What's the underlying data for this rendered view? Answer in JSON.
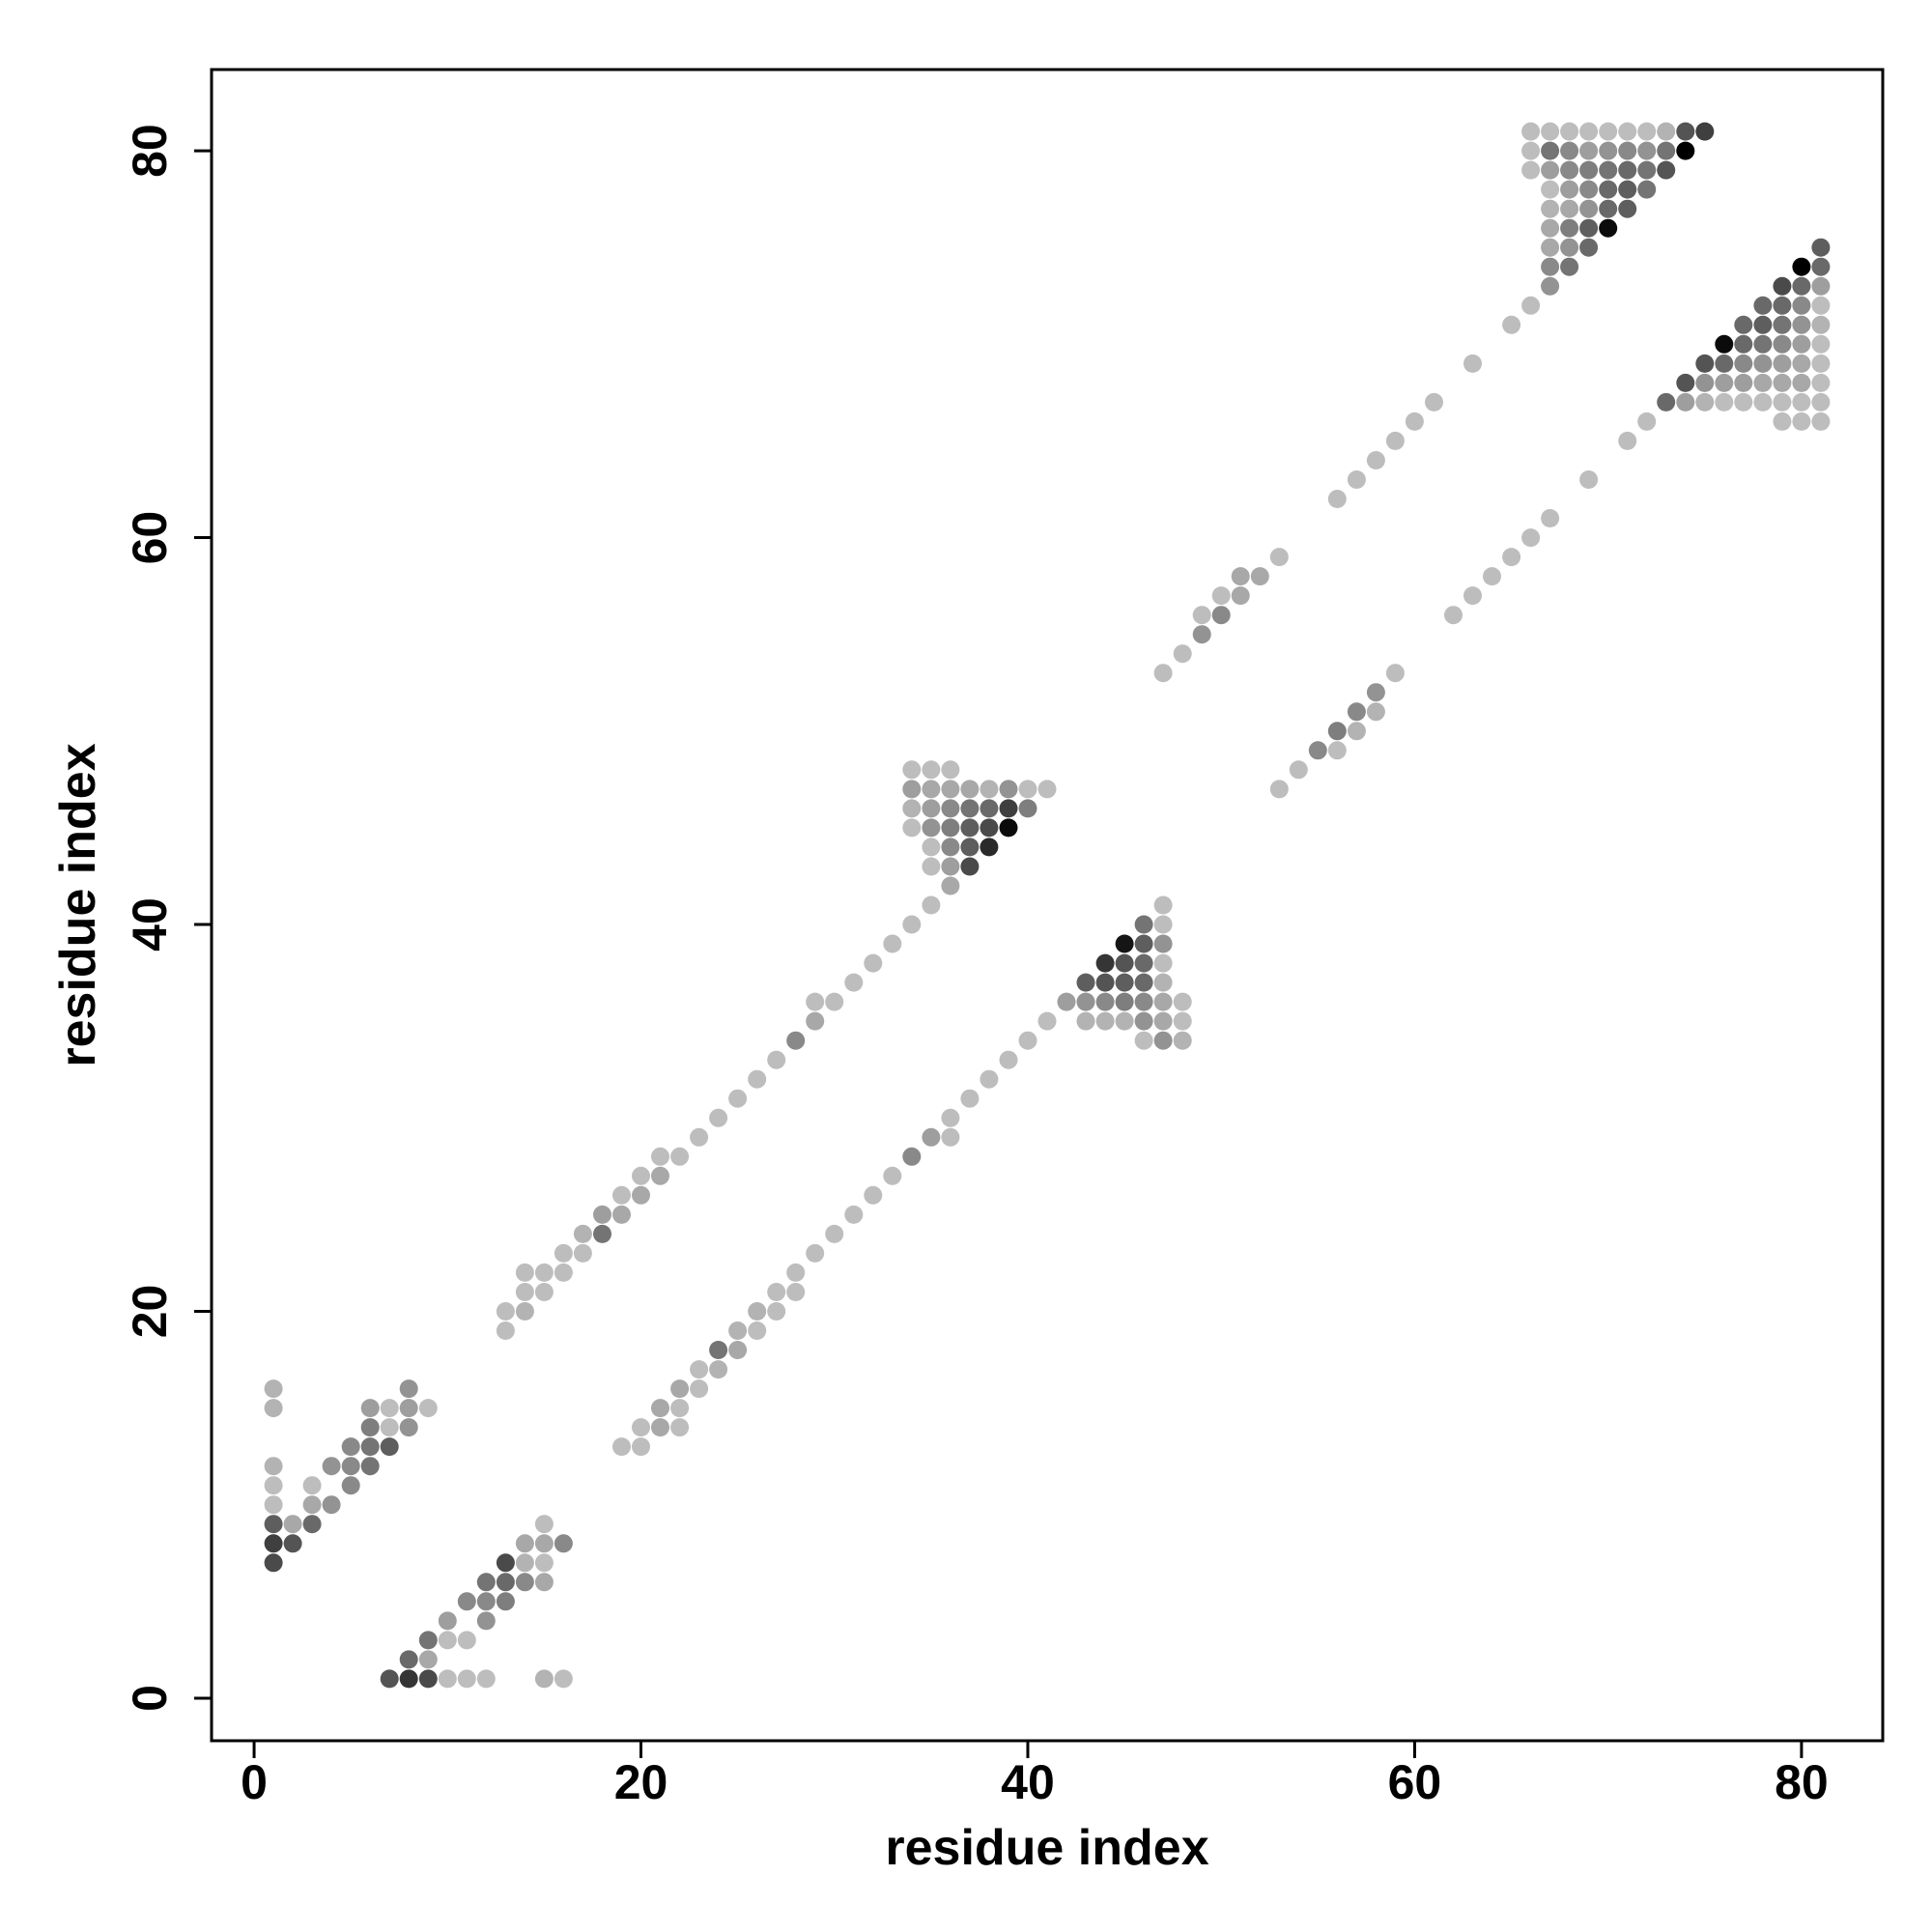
{
  "chart_data": {
    "type": "scatter",
    "title": "",
    "xlabel": "residue index",
    "ylabel": "residue index",
    "xlim": [
      -2.2,
      84.2
    ],
    "ylim": [
      -2.2,
      84.2
    ],
    "xticks": [
      0,
      20,
      40,
      60,
      80
    ],
    "yticks": [
      0,
      20,
      40,
      60,
      80
    ],
    "grid": false,
    "legend": "none",
    "color_scale": {
      "low": "#d2d2d2",
      "high": "#000000",
      "value_range": [
        0,
        1
      ]
    },
    "points": [
      [
        7,
        1,
        0.6
      ],
      [
        8,
        1,
        0.75
      ],
      [
        9,
        1,
        0.65
      ],
      [
        10,
        1,
        0.1
      ],
      [
        11,
        1,
        0.1
      ],
      [
        12,
        1,
        0.1
      ],
      [
        15,
        1,
        0.15
      ],
      [
        16,
        1,
        0.1
      ],
      [
        8,
        2,
        0.5
      ],
      [
        9,
        2,
        0.2
      ],
      [
        9,
        3,
        0.45
      ],
      [
        10,
        3,
        0.1
      ],
      [
        11,
        3,
        0.1
      ],
      [
        10,
        4,
        0.25
      ],
      [
        12,
        4,
        0.3
      ],
      [
        11,
        5,
        0.35
      ],
      [
        12,
        5,
        0.35
      ],
      [
        13,
        5,
        0.4
      ],
      [
        12,
        6,
        0.45
      ],
      [
        13,
        6,
        0.5
      ],
      [
        14,
        6,
        0.35
      ],
      [
        15,
        6,
        0.2
      ],
      [
        13,
        7,
        0.65
      ],
      [
        14,
        7,
        0.15
      ],
      [
        15,
        7,
        0.1
      ],
      [
        14,
        8,
        0.2
      ],
      [
        15,
        8,
        0.2
      ],
      [
        16,
        8,
        0.35
      ],
      [
        15,
        9,
        0.1
      ],
      [
        1,
        7,
        0.65
      ],
      [
        1,
        8,
        0.7
      ],
      [
        2,
        8,
        0.6
      ],
      [
        1,
        9,
        0.55
      ],
      [
        2,
        9,
        0.2
      ],
      [
        3,
        9,
        0.5
      ],
      [
        1,
        10,
        0.1
      ],
      [
        3,
        10,
        0.2
      ],
      [
        4,
        10,
        0.3
      ],
      [
        1,
        11,
        0.1
      ],
      [
        3,
        11,
        0.1
      ],
      [
        5,
        11,
        0.35
      ],
      [
        1,
        12,
        0.15
      ],
      [
        4,
        12,
        0.3
      ],
      [
        5,
        12,
        0.35
      ],
      [
        6,
        12,
        0.45
      ],
      [
        5,
        13,
        0.35
      ],
      [
        6,
        13,
        0.45
      ],
      [
        7,
        13,
        0.55
      ],
      [
        6,
        14,
        0.4
      ],
      [
        7,
        14,
        0.1
      ],
      [
        8,
        14,
        0.3
      ],
      [
        6,
        15,
        0.25
      ],
      [
        7,
        15,
        0.1
      ],
      [
        8,
        15,
        0.25
      ],
      [
        9,
        15,
        0.1
      ],
      [
        1,
        15,
        0.15
      ],
      [
        1,
        16,
        0.15
      ],
      [
        8,
        16,
        0.3
      ],
      [
        19,
        13,
        0.1
      ],
      [
        20,
        13,
        0.1
      ],
      [
        20,
        14,
        0.1
      ],
      [
        21,
        14,
        0.2
      ],
      [
        22,
        14,
        0.1
      ],
      [
        21,
        15,
        0.2
      ],
      [
        22,
        15,
        0.1
      ],
      [
        22,
        16,
        0.2
      ],
      [
        23,
        16,
        0.1
      ],
      [
        23,
        17,
        0.1
      ],
      [
        24,
        17,
        0.15
      ],
      [
        24,
        18,
        0.45
      ],
      [
        25,
        18,
        0.2
      ],
      [
        25,
        19,
        0.15
      ],
      [
        26,
        19,
        0.1
      ],
      [
        26,
        20,
        0.15
      ],
      [
        27,
        20,
        0.1
      ],
      [
        27,
        21,
        0.1
      ],
      [
        28,
        21,
        0.1
      ],
      [
        28,
        22,
        0.1
      ],
      [
        29,
        23,
        0.1
      ],
      [
        30,
        24,
        0.1
      ],
      [
        31,
        25,
        0.1
      ],
      [
        32,
        26,
        0.1
      ],
      [
        33,
        27,
        0.1
      ],
      [
        34,
        28,
        0.35
      ],
      [
        35,
        29,
        0.25
      ],
      [
        36,
        29,
        0.1
      ],
      [
        36,
        30,
        0.1
      ],
      [
        37,
        31,
        0.1
      ],
      [
        38,
        32,
        0.1
      ],
      [
        39,
        33,
        0.1
      ],
      [
        40,
        34,
        0.1
      ],
      [
        41,
        35,
        0.1
      ],
      [
        43,
        35,
        0.15
      ],
      [
        44,
        35,
        0.15
      ],
      [
        45,
        35,
        0.15
      ],
      [
        46,
        35,
        0.3
      ],
      [
        47,
        35,
        0.2
      ],
      [
        48,
        35,
        0.1
      ],
      [
        42,
        36,
        0.25
      ],
      [
        43,
        36,
        0.3
      ],
      [
        44,
        36,
        0.35
      ],
      [
        45,
        36,
        0.4
      ],
      [
        46,
        36,
        0.35
      ],
      [
        47,
        36,
        0.2
      ],
      [
        48,
        36,
        0.1
      ],
      [
        43,
        37,
        0.55
      ],
      [
        44,
        37,
        0.6
      ],
      [
        45,
        37,
        0.55
      ],
      [
        46,
        37,
        0.5
      ],
      [
        47,
        37,
        0.15
      ],
      [
        44,
        38,
        0.75
      ],
      [
        45,
        38,
        0.6
      ],
      [
        46,
        38,
        0.5
      ],
      [
        47,
        38,
        0.1
      ],
      [
        45,
        39,
        0.9
      ],
      [
        46,
        39,
        0.55
      ],
      [
        47,
        39,
        0.3
      ],
      [
        46,
        40,
        0.45
      ],
      [
        47,
        40,
        0.1
      ],
      [
        47,
        41,
        0.1
      ],
      [
        46,
        34,
        0.1
      ],
      [
        47,
        34,
        0.3
      ],
      [
        48,
        34,
        0.15
      ],
      [
        13,
        19,
        0.1
      ],
      [
        13,
        20,
        0.1
      ],
      [
        14,
        20,
        0.15
      ],
      [
        14,
        21,
        0.1
      ],
      [
        15,
        21,
        0.1
      ],
      [
        14,
        22,
        0.1
      ],
      [
        15,
        22,
        0.1
      ],
      [
        16,
        22,
        0.1
      ],
      [
        16,
        23,
        0.1
      ],
      [
        17,
        23,
        0.1
      ],
      [
        17,
        24,
        0.15
      ],
      [
        18,
        24,
        0.45
      ],
      [
        18,
        25,
        0.25
      ],
      [
        19,
        25,
        0.2
      ],
      [
        19,
        26,
        0.1
      ],
      [
        20,
        26,
        0.2
      ],
      [
        20,
        27,
        0.1
      ],
      [
        21,
        27,
        0.2
      ],
      [
        21,
        28,
        0.1
      ],
      [
        22,
        28,
        0.1
      ],
      [
        23,
        29,
        0.1
      ],
      [
        24,
        30,
        0.1
      ],
      [
        25,
        31,
        0.1
      ],
      [
        26,
        32,
        0.1
      ],
      [
        27,
        33,
        0.1
      ],
      [
        28,
        34,
        0.35
      ],
      [
        29,
        35,
        0.2
      ],
      [
        29,
        36,
        0.1
      ],
      [
        30,
        36,
        0.1
      ],
      [
        31,
        37,
        0.1
      ],
      [
        32,
        38,
        0.1
      ],
      [
        33,
        39,
        0.1
      ],
      [
        34,
        40,
        0.1
      ],
      [
        35,
        41,
        0.1
      ],
      [
        36,
        42,
        0.2
      ],
      [
        35,
        43,
        0.1
      ],
      [
        36,
        43,
        0.25
      ],
      [
        37,
        43,
        0.65
      ],
      [
        35,
        44,
        0.1
      ],
      [
        36,
        44,
        0.35
      ],
      [
        37,
        44,
        0.55
      ],
      [
        38,
        44,
        0.8
      ],
      [
        34,
        45,
        0.1
      ],
      [
        35,
        45,
        0.3
      ],
      [
        36,
        45,
        0.4
      ],
      [
        37,
        45,
        0.55
      ],
      [
        38,
        45,
        0.65
      ],
      [
        39,
        45,
        0.95
      ],
      [
        34,
        46,
        0.15
      ],
      [
        35,
        46,
        0.25
      ],
      [
        36,
        46,
        0.35
      ],
      [
        37,
        46,
        0.45
      ],
      [
        38,
        46,
        0.5
      ],
      [
        39,
        46,
        0.7
      ],
      [
        40,
        46,
        0.4
      ],
      [
        34,
        47,
        0.25
      ],
      [
        35,
        47,
        0.2
      ],
      [
        36,
        47,
        0.2
      ],
      [
        37,
        47,
        0.2
      ],
      [
        38,
        47,
        0.15
      ],
      [
        39,
        47,
        0.3
      ],
      [
        40,
        47,
        0.1
      ],
      [
        41,
        47,
        0.1
      ],
      [
        34,
        48,
        0.1
      ],
      [
        35,
        48,
        0.1
      ],
      [
        36,
        48,
        0.1
      ],
      [
        47,
        53,
        0.1
      ],
      [
        48,
        54,
        0.1
      ],
      [
        49,
        55,
        0.3
      ],
      [
        49,
        56,
        0.1
      ],
      [
        50,
        56,
        0.35
      ],
      [
        50,
        57,
        0.1
      ],
      [
        51,
        57,
        0.2
      ],
      [
        51,
        58,
        0.2
      ],
      [
        52,
        58,
        0.2
      ],
      [
        53,
        59,
        0.1
      ],
      [
        56,
        62,
        0.1
      ],
      [
        57,
        63,
        0.1
      ],
      [
        58,
        64,
        0.1
      ],
      [
        59,
        65,
        0.1
      ],
      [
        60,
        66,
        0.1
      ],
      [
        61,
        67,
        0.1
      ],
      [
        63,
        69,
        0.1
      ],
      [
        65,
        71,
        0.1
      ],
      [
        53,
        47,
        0.1
      ],
      [
        54,
        48,
        0.1
      ],
      [
        55,
        49,
        0.35
      ],
      [
        56,
        49,
        0.1
      ],
      [
        56,
        50,
        0.4
      ],
      [
        57,
        50,
        0.15
      ],
      [
        57,
        51,
        0.35
      ],
      [
        58,
        51,
        0.15
      ],
      [
        58,
        52,
        0.3
      ],
      [
        59,
        53,
        0.1
      ],
      [
        62,
        56,
        0.1
      ],
      [
        63,
        57,
        0.1
      ],
      [
        64,
        58,
        0.1
      ],
      [
        65,
        59,
        0.1
      ],
      [
        66,
        60,
        0.1
      ],
      [
        67,
        61,
        0.1
      ],
      [
        69,
        63,
        0.1
      ],
      [
        71,
        65,
        0.1
      ],
      [
        72,
        66,
        0.1
      ],
      [
        66,
        72,
        0.1
      ],
      [
        67,
        73,
        0.3
      ],
      [
        67,
        74,
        0.35
      ],
      [
        68,
        74,
        0.45
      ],
      [
        67,
        75,
        0.2
      ],
      [
        68,
        75,
        0.3
      ],
      [
        69,
        75,
        0.5
      ],
      [
        67,
        76,
        0.2
      ],
      [
        68,
        76,
        0.4
      ],
      [
        69,
        76,
        0.55
      ],
      [
        70,
        76,
        0.95
      ],
      [
        67,
        77,
        0.15
      ],
      [
        68,
        77,
        0.2
      ],
      [
        69,
        77,
        0.3
      ],
      [
        70,
        77,
        0.5
      ],
      [
        71,
        77,
        0.55
      ],
      [
        67,
        78,
        0.1
      ],
      [
        68,
        78,
        0.25
      ],
      [
        69,
        78,
        0.35
      ],
      [
        70,
        78,
        0.5
      ],
      [
        71,
        78,
        0.55
      ],
      [
        72,
        78,
        0.45
      ],
      [
        66,
        79,
        0.1
      ],
      [
        67,
        79,
        0.25
      ],
      [
        68,
        79,
        0.35
      ],
      [
        69,
        79,
        0.4
      ],
      [
        70,
        79,
        0.45
      ],
      [
        71,
        79,
        0.5
      ],
      [
        72,
        79,
        0.45
      ],
      [
        73,
        79,
        0.6
      ],
      [
        66,
        80,
        0.1
      ],
      [
        67,
        80,
        0.45
      ],
      [
        68,
        80,
        0.35
      ],
      [
        69,
        80,
        0.25
      ],
      [
        70,
        80,
        0.3
      ],
      [
        71,
        80,
        0.35
      ],
      [
        72,
        80,
        0.3
      ],
      [
        73,
        80,
        0.45
      ],
      [
        74,
        80,
        1.0
      ],
      [
        66,
        81,
        0.1
      ],
      [
        67,
        81,
        0.1
      ],
      [
        68,
        81,
        0.1
      ],
      [
        69,
        81,
        0.1
      ],
      [
        70,
        81,
        0.1
      ],
      [
        71,
        81,
        0.1
      ],
      [
        72,
        81,
        0.1
      ],
      [
        73,
        81,
        0.15
      ],
      [
        74,
        81,
        0.6
      ],
      [
        75,
        81,
        0.7
      ],
      [
        73,
        67,
        0.5
      ],
      [
        74,
        67,
        0.25
      ],
      [
        75,
        67,
        0.15
      ],
      [
        76,
        67,
        0.1
      ],
      [
        77,
        67,
        0.1
      ],
      [
        78,
        67,
        0.1
      ],
      [
        79,
        67,
        0.1
      ],
      [
        80,
        67,
        0.1
      ],
      [
        81,
        67,
        0.1
      ],
      [
        74,
        68,
        0.6
      ],
      [
        75,
        68,
        0.3
      ],
      [
        76,
        68,
        0.25
      ],
      [
        77,
        68,
        0.25
      ],
      [
        78,
        68,
        0.2
      ],
      [
        79,
        68,
        0.2
      ],
      [
        80,
        68,
        0.2
      ],
      [
        81,
        68,
        0.1
      ],
      [
        75,
        69,
        0.6
      ],
      [
        76,
        69,
        0.5
      ],
      [
        77,
        69,
        0.35
      ],
      [
        78,
        69,
        0.3
      ],
      [
        79,
        69,
        0.25
      ],
      [
        80,
        69,
        0.2
      ],
      [
        81,
        69,
        0.1
      ],
      [
        76,
        70,
        0.95
      ],
      [
        77,
        70,
        0.5
      ],
      [
        78,
        70,
        0.45
      ],
      [
        79,
        70,
        0.35
      ],
      [
        80,
        70,
        0.25
      ],
      [
        81,
        70,
        0.1
      ],
      [
        77,
        71,
        0.5
      ],
      [
        78,
        71,
        0.55
      ],
      [
        79,
        71,
        0.45
      ],
      [
        80,
        71,
        0.3
      ],
      [
        81,
        71,
        0.15
      ],
      [
        78,
        72,
        0.5
      ],
      [
        79,
        72,
        0.5
      ],
      [
        80,
        72,
        0.35
      ],
      [
        81,
        72,
        0.1
      ],
      [
        79,
        73,
        0.65
      ],
      [
        80,
        73,
        0.5
      ],
      [
        81,
        73,
        0.25
      ],
      [
        80,
        74,
        1.0
      ],
      [
        81,
        74,
        0.5
      ],
      [
        81,
        75,
        0.55
      ],
      [
        79,
        66,
        0.1
      ],
      [
        80,
        66,
        0.1
      ],
      [
        81,
        66,
        0.1
      ]
    ]
  }
}
